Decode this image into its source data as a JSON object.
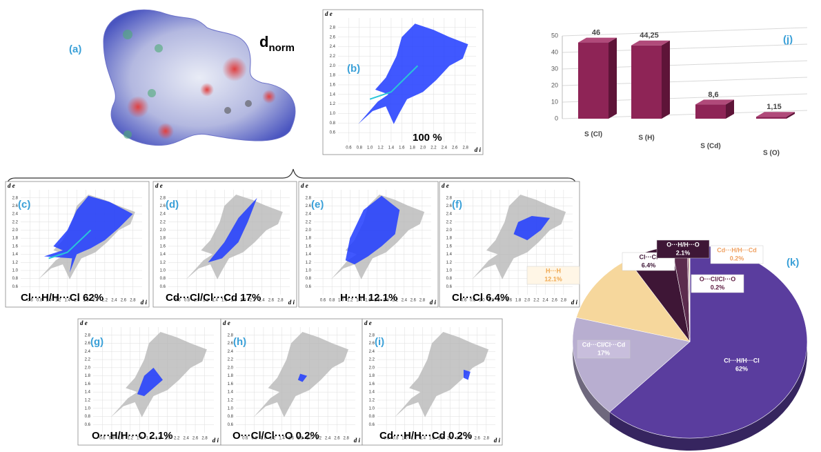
{
  "panels": {
    "a": {
      "label": "(a)",
      "title": "d",
      "subscript": "norm"
    },
    "b": {
      "label": "(b)",
      "caption": "100 %"
    },
    "c": {
      "label": "(c)",
      "caption": "Cl···H/H···Cl 62%"
    },
    "d": {
      "label": "(d)",
      "caption": "Cd···Cl/Cl···Cd  17%"
    },
    "e": {
      "label": "(e)",
      "caption": "H···H  12.1%"
    },
    "f": {
      "label": "(f)",
      "caption": "Cl···Cl  6.4%"
    },
    "g": {
      "label": "(g)",
      "caption": "O···H/H···O  2.1%"
    },
    "h": {
      "label": "(h)",
      "caption": "O···Cl/Cl···O  0.2%"
    },
    "i": {
      "label": "(i)",
      "caption": "Cd···H/H···Cd  0.2%"
    }
  },
  "fingerprint": {
    "x_label": "d i",
    "y_label": "d e",
    "lim": [
      0.4,
      3.0
    ],
    "ticks": [
      0.6,
      0.8,
      {
        "value": 1.0,
        "label": "1.0"
      },
      1.2,
      1.4,
      1.6,
      1.8,
      {
        "value": 2.0,
        "label": "2.0"
      },
      2.2,
      2.4,
      2.6,
      2.8
    ]
  },
  "chart_data": [
    {
      "type": "bar",
      "label": "(j)",
      "categories": [
        "S (Cl)",
        "S (H)",
        "S (Cd)",
        "S (O)"
      ],
      "values": [
        46,
        44.25,
        8.6,
        1.15
      ],
      "value_labels": [
        "46",
        "44,25",
        "8,6",
        "1,15"
      ],
      "color": "#8e2456",
      "ylim": [
        0,
        50
      ],
      "yticks": [
        0,
        10,
        20,
        30,
        40,
        50
      ],
      "grid": true
    },
    {
      "type": "pie",
      "label": "(k)",
      "categories": [
        "Cl···H/H···Cl",
        "Cd···Cl/Cl···Cd",
        "H···H",
        "Cl···Cl",
        "O···H/H···O",
        "O···Cl/Cl···O",
        "Cd···H/H···Cd"
      ],
      "values": [
        62,
        17,
        12.1,
        6.4,
        2.1,
        0.2,
        0.2
      ],
      "value_labels": [
        "62%",
        "17%",
        "12.1%",
        "6.4%",
        "2.1%",
        "0.2%",
        "0.2%"
      ],
      "colors": [
        "#5a3d9e",
        "#b8aed0",
        "#f6d79c",
        "#3e1636",
        "#5c2c4e",
        "#7a3a60",
        "#e8e0c0"
      ]
    }
  ]
}
